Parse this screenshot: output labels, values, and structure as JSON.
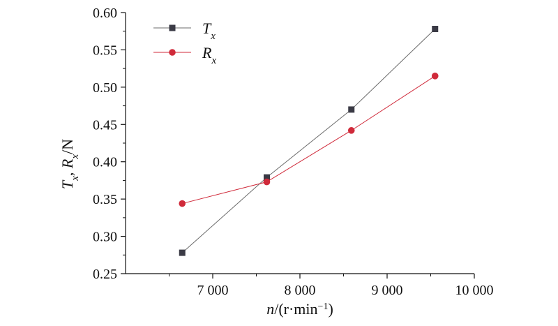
{
  "chart_data": {
    "type": "line",
    "xlabel": {
      "var": "n",
      "rest": "/(r·min",
      "sup": "−1",
      "close": ")"
    },
    "ylabel": {
      "t": "T",
      "t_sub": "x",
      "sep": ", ",
      "r": "R",
      "r_sub": "x",
      "unit": "/N"
    },
    "xlim": [
      6000,
      10000
    ],
    "ylim": [
      0.25,
      0.6
    ],
    "xticks": [
      7000,
      8000,
      9000,
      10000
    ],
    "xtick_labels": [
      "7 000",
      "8 000",
      "9 000",
      "10 000"
    ],
    "yticks": [
      0.25,
      0.3,
      0.35,
      0.4,
      0.45,
      0.5,
      0.55,
      0.6
    ],
    "ytick_labels": [
      "0.25",
      "0.30",
      "0.35",
      "0.40",
      "0.45",
      "0.50",
      "0.55",
      "0.60"
    ],
    "legend_position": "top-left",
    "series": [
      {
        "name": "T",
        "name_sub": "x",
        "marker": "square",
        "color": "#3a3a45",
        "line_color": "#6b6b6b",
        "x": [
          6650,
          7620,
          8590,
          9550
        ],
        "y": [
          0.278,
          0.379,
          0.47,
          0.578
        ]
      },
      {
        "name": "R",
        "name_sub": "x",
        "marker": "circle",
        "color": "#d02a3a",
        "line_color": "#d02a3a",
        "x": [
          6650,
          7620,
          8590,
          9550
        ],
        "y": [
          0.344,
          0.373,
          0.442,
          0.515
        ]
      }
    ]
  }
}
